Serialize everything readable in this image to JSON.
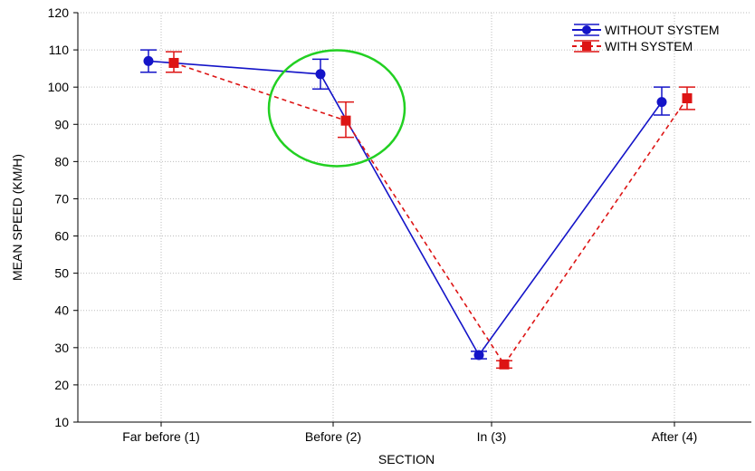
{
  "chart_data": {
    "type": "line",
    "title": "",
    "xlabel": "SECTION",
    "ylabel": "MEAN SPEED (KM/H)",
    "categories": [
      "Far before (1)",
      "Before (2)",
      "In (3)",
      "After (4)"
    ],
    "ylim": [
      10,
      120
    ],
    "yticks": [
      "10",
      "20",
      "30",
      "40",
      "50",
      "60",
      "70",
      "80",
      "90",
      "100",
      "110",
      "120"
    ],
    "grid": true,
    "legend_position": "top-right",
    "series": [
      {
        "name": "WITHOUT SYSTEM",
        "color": "#1414c8",
        "marker": "circle",
        "line_style": "solid",
        "values": [
          107,
          103.5,
          28,
          96
        ],
        "error_low": [
          104,
          99.5,
          27,
          92.5
        ],
        "error_high": [
          110,
          107.5,
          29,
          100
        ]
      },
      {
        "name": "WITH SYSTEM",
        "color": "#dd1414",
        "marker": "square",
        "line_style": "dashed",
        "values": [
          106.5,
          91,
          25.5,
          97
        ],
        "error_low": [
          104,
          86.5,
          24.5,
          94
        ],
        "error_high": [
          109.5,
          96,
          26.5,
          100
        ]
      }
    ],
    "annotation": {
      "type": "circle",
      "color": "#22d022",
      "target_category": "Before (2)"
    }
  }
}
